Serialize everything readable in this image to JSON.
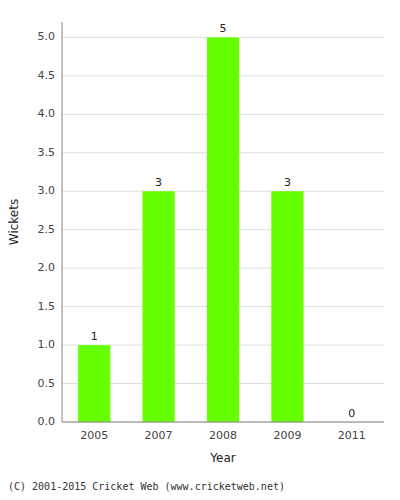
{
  "chart_data": {
    "type": "bar",
    "categories": [
      "2005",
      "2007",
      "2008",
      "2009",
      "2011"
    ],
    "values": [
      1,
      3,
      5,
      3,
      0
    ],
    "color": "#66ff00",
    "x_label": "Year",
    "y_label": "Wickets",
    "ylim": [
      0,
      5.2
    ],
    "yticks": [
      {
        "value": 0.0,
        "label": "0.0"
      },
      0.5,
      {
        "value": 1.0,
        "label": "1.0"
      },
      1.5,
      {
        "value": 2.0,
        "label": "2.0"
      },
      2.5,
      {
        "value": 3.0,
        "label": "3.0"
      },
      3.5,
      {
        "value": 4.0,
        "label": "4.0"
      },
      4.5,
      {
        "value": 5.0,
        "label": "5.0"
      }
    ],
    "grid": true,
    "data_labels": true,
    "footer": "(C) 2001-2015 Cricket Web (www.cricketweb.net)"
  }
}
